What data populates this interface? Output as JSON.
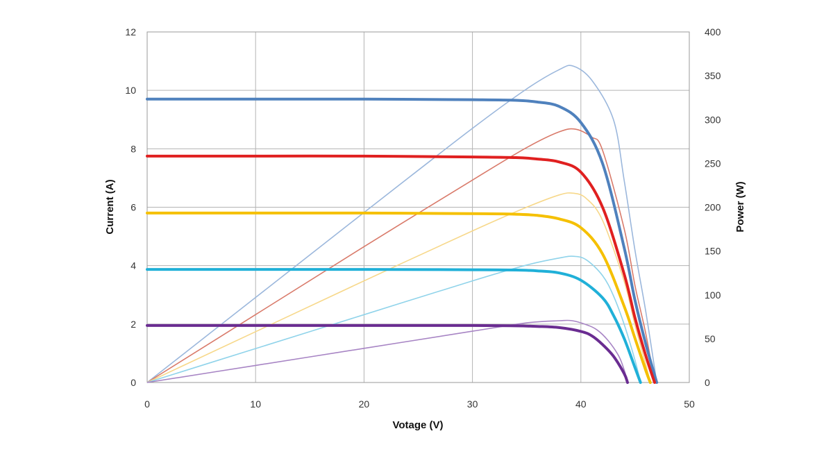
{
  "chart_data": {
    "type": "line",
    "xlabel": "Votage (V)",
    "ylabel_left": "Current (A)",
    "ylabel_right": "Power (W)",
    "xlim": [
      0,
      50
    ],
    "ylim_left": [
      0,
      12
    ],
    "ylim_right": [
      0,
      400
    ],
    "x_ticks": [
      "0",
      "10",
      "20",
      "30",
      "40",
      "50"
    ],
    "y_left_ticks": [
      "0",
      "2",
      "4",
      "6",
      "8",
      "10",
      "12"
    ],
    "y_right_ticks": [
      "0",
      "50",
      "100",
      "150",
      "200",
      "250",
      "300",
      "350",
      "400"
    ],
    "grid": true,
    "current_series": [
      {
        "color": "#4f81bd",
        "x": [
          0,
          10,
          20,
          30,
          34,
          36,
          38,
          40,
          42,
          44,
          45,
          46,
          47
        ],
        "y": [
          9.7,
          9.7,
          9.7,
          9.68,
          9.66,
          9.6,
          9.45,
          8.9,
          7.5,
          4.6,
          2.8,
          1.3,
          0
        ]
      },
      {
        "color": "#e02020",
        "x": [
          0,
          10,
          20,
          30,
          34,
          36,
          38,
          40,
          42,
          44,
          45,
          46,
          46.8
        ],
        "y": [
          7.75,
          7.75,
          7.75,
          7.72,
          7.7,
          7.65,
          7.55,
          7.2,
          6.0,
          3.7,
          2.2,
          0.9,
          0
        ]
      },
      {
        "color": "#f5c000",
        "x": [
          0,
          10,
          20,
          30,
          34,
          36,
          38,
          40,
          42,
          44,
          45,
          46,
          46.4
        ],
        "y": [
          5.8,
          5.8,
          5.8,
          5.78,
          5.76,
          5.72,
          5.6,
          5.3,
          4.4,
          2.6,
          1.5,
          0.4,
          0
        ]
      },
      {
        "color": "#20b0d8",
        "x": [
          0,
          10,
          20,
          30,
          34,
          36,
          38,
          40,
          42,
          43,
          44,
          45,
          45.5
        ],
        "y": [
          3.87,
          3.87,
          3.87,
          3.86,
          3.85,
          3.82,
          3.75,
          3.5,
          2.9,
          2.3,
          1.5,
          0.5,
          0
        ]
      },
      {
        "color": "#6a2c91",
        "x": [
          0,
          10,
          20,
          30,
          34,
          36,
          38,
          40,
          41,
          42,
          43,
          44,
          44.3
        ],
        "y": [
          1.95,
          1.95,
          1.95,
          1.95,
          1.94,
          1.92,
          1.88,
          1.75,
          1.6,
          1.3,
          0.9,
          0.3,
          0
        ]
      }
    ],
    "power_series": [
      {
        "color": "#9bb7dc",
        "x": [
          0,
          10,
          20,
          30,
          35,
          38,
          39.3,
          41,
          43,
          44,
          45,
          46,
          47
        ],
        "y": [
          0,
          97,
          194,
          290,
          335,
          357,
          361,
          345,
          300,
          230,
          150,
          80,
          0
        ]
      },
      {
        "color": "#d97a6a",
        "x": [
          0,
          10,
          20,
          30,
          35,
          38,
          39.5,
          41,
          42,
          44,
          45,
          46,
          46.8
        ],
        "y": [
          0,
          77.5,
          155,
          231,
          268,
          286,
          289,
          280,
          265,
          175,
          110,
          55,
          0
        ]
      },
      {
        "color": "#f7d88a",
        "x": [
          0,
          10,
          20,
          30,
          35,
          38,
          39.3,
          40.5,
          42,
          44,
          45,
          46,
          46.4
        ],
        "y": [
          0,
          58,
          116,
          173,
          200,
          214,
          216,
          210,
          185,
          115,
          65,
          20,
          0
        ]
      },
      {
        "color": "#8fd3ea",
        "x": [
          0,
          10,
          20,
          30,
          35,
          38,
          39.3,
          40.5,
          42,
          43,
          44,
          45,
          45.5
        ],
        "y": [
          0,
          38.7,
          77.4,
          116,
          134,
          142,
          144,
          140,
          122,
          99,
          66,
          25,
          0
        ]
      },
      {
        "color": "#a784c4",
        "x": [
          0,
          10,
          20,
          30,
          35,
          38,
          39.2,
          40.5,
          41.5,
          42.5,
          43.5,
          44,
          44.3
        ],
        "y": [
          0,
          19.5,
          39,
          58.5,
          68,
          70.5,
          70.5,
          66,
          60,
          48,
          30,
          14,
          0
        ]
      }
    ]
  }
}
